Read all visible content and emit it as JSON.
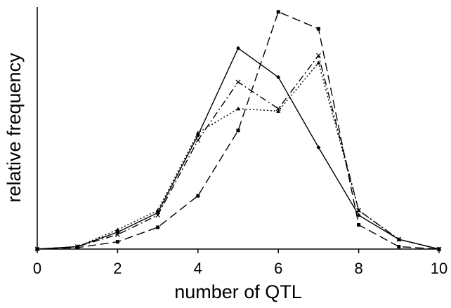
{
  "chart_data": {
    "type": "line",
    "xlabel": "number of QTL",
    "ylabel": "relative frequency",
    "x": [
      0,
      1,
      2,
      3,
      4,
      5,
      6,
      7,
      8,
      9,
      10
    ],
    "xlim": [
      0,
      10
    ],
    "xticks": [
      0,
      2,
      4,
      6,
      8,
      10
    ],
    "ylim": [
      0,
      1
    ],
    "series": [
      {
        "color": "#000000",
        "dash": "none",
        "marker": "diamond",
        "values": [
          0,
          0.01,
          0.07,
          0.15,
          0.47,
          0.83,
          0.71,
          0.42,
          0.14,
          0.04,
          0
        ]
      },
      {
        "color": "#000000",
        "dash": "12 6",
        "marker": "square",
        "values": [
          0,
          0.006,
          0.03,
          0.09,
          0.22,
          0.49,
          0.98,
          0.91,
          0.1,
          0.01,
          0
        ]
      },
      {
        "color": "#000000",
        "dash": "10 4 2 4",
        "marker": "cross",
        "values": [
          0,
          0.01,
          0.06,
          0.14,
          0.45,
          0.69,
          0.58,
          0.8,
          0.16,
          0.04,
          0
        ]
      },
      {
        "color": "#000000",
        "dash": "2 3",
        "marker": "triangle",
        "values": [
          0,
          0.01,
          0.08,
          0.16,
          0.48,
          0.58,
          0.57,
          0.77,
          0.16,
          0.04,
          0
        ]
      }
    ]
  }
}
